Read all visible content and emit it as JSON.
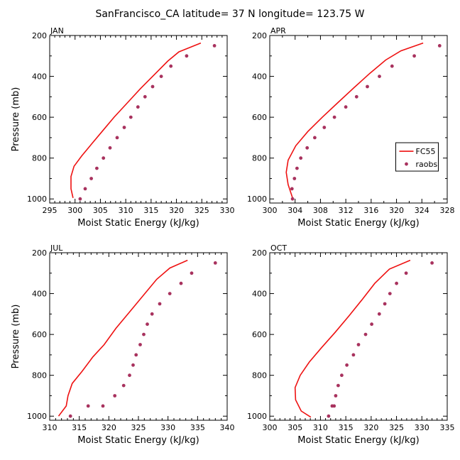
{
  "figure": {
    "title": "SanFrancisco_CA  latitude= 37 N longitude= 123.75 W"
  },
  "colors": {
    "model_line": "#ee1111",
    "obs_marker": "#a8325e",
    "axis": "#000000"
  },
  "chart_data": [
    {
      "type": "line",
      "panel_label": "JAN",
      "xlabel": "Moist Static Energy (kJ/kg)",
      "ylabel": "Pressure (mb)",
      "xlim": [
        295,
        330
      ],
      "ylim": [
        1020,
        200
      ],
      "xticks": [
        295,
        300,
        305,
        310,
        315,
        320,
        325,
        330
      ],
      "yticks": [
        200,
        400,
        600,
        800,
        1000
      ],
      "grid": false,
      "series": [
        {
          "style": "line",
          "x": [
            324.8,
            320.5,
            318.3,
            315.7,
            312.9,
            310.3,
            307.7,
            305.5,
            303.3,
            301.3,
            299.8,
            299.2,
            299.2,
            299.6
          ],
          "y": [
            237,
            280,
            325,
            390,
            460,
            530,
            600,
            665,
            730,
            790,
            840,
            890,
            950,
            995
          ]
        },
        {
          "style": "markers",
          "x": [
            327.5,
            322.0,
            318.9,
            317.0,
            315.3,
            313.8,
            312.4,
            311.0,
            309.7,
            308.3,
            306.9,
            305.6,
            304.3,
            303.2,
            302.0,
            301.0
          ],
          "y": [
            250,
            300,
            350,
            400,
            450,
            500,
            550,
            600,
            650,
            700,
            750,
            800,
            850,
            900,
            950,
            1000
          ]
        }
      ]
    },
    {
      "type": "line",
      "panel_label": "APR",
      "xlabel": "Moist Static Energy (kJ/kg)",
      "ylabel": "",
      "xlim": [
        300,
        328
      ],
      "ylim": [
        1020,
        200
      ],
      "xticks": [
        300,
        304,
        308,
        312,
        316,
        320,
        324,
        328
      ],
      "yticks": [
        200,
        400,
        600,
        800,
        1000
      ],
      "grid": false,
      "series": [
        {
          "name": "FC55",
          "style": "line",
          "x": [
            324.2,
            320.7,
            318.3,
            315.8,
            313.3,
            310.7,
            308.3,
            306.0,
            304.1,
            302.9,
            302.6,
            302.9,
            303.6
          ],
          "y": [
            237,
            275,
            320,
            385,
            455,
            530,
            600,
            670,
            740,
            810,
            870,
            930,
            995
          ]
        },
        {
          "name": "raobs",
          "style": "markers",
          "x": [
            326.8,
            322.8,
            319.3,
            317.3,
            315.4,
            313.7,
            312.0,
            310.2,
            308.6,
            307.1,
            305.9,
            304.9,
            304.3,
            303.9,
            303.5,
            303.6
          ],
          "y": [
            250,
            300,
            350,
            400,
            450,
            500,
            550,
            600,
            650,
            700,
            750,
            800,
            850,
            900,
            950,
            1000
          ]
        }
      ]
    },
    {
      "type": "line",
      "panel_label": "JUL",
      "xlabel": "Moist Static Energy (kJ/kg)",
      "ylabel": "Pressure (mb)",
      "xlim": [
        310,
        340
      ],
      "ylim": [
        1020,
        200
      ],
      "xticks": [
        310,
        315,
        320,
        325,
        330,
        335,
        340
      ],
      "yticks": [
        200,
        400,
        600,
        800,
        1000
      ],
      "grid": false,
      "series": [
        {
          "style": "line",
          "x": [
            333.3,
            330.3,
            328.1,
            325.8,
            323.5,
            321.2,
            319.2,
            317.3,
            315.5,
            313.8,
            313.1,
            312.8,
            311.5
          ],
          "y": [
            237,
            275,
            330,
            410,
            490,
            570,
            650,
            710,
            780,
            840,
            900,
            950,
            1000
          ]
        },
        {
          "style": "markers",
          "x": [
            338.0,
            334.0,
            332.2,
            330.3,
            328.6,
            327.3,
            326.5,
            325.9,
            325.3,
            324.6,
            324.1,
            323.5,
            322.5,
            321.0,
            319.0,
            316.5,
            313.5
          ],
          "y": [
            250,
            300,
            350,
            400,
            450,
            500,
            550,
            600,
            650,
            700,
            750,
            800,
            850,
            900,
            950,
            950,
            1000
          ]
        }
      ]
    },
    {
      "type": "line",
      "panel_label": "OCT",
      "xlabel": "Moist Static Energy (kJ/kg)",
      "ylabel": "",
      "xlim": [
        300,
        335
      ],
      "ylim": [
        1020,
        200
      ],
      "xticks": [
        300,
        305,
        310,
        315,
        320,
        325,
        330,
        335
      ],
      "yticks": [
        200,
        400,
        600,
        800,
        1000
      ],
      "grid": false,
      "series": [
        {
          "style": "line",
          "x": [
            327.7,
            323.6,
            320.7,
            318.2,
            315.6,
            312.9,
            310.2,
            307.8,
            306.0,
            305.0,
            305.1,
            306.2,
            308.1
          ],
          "y": [
            237,
            280,
            350,
            430,
            510,
            590,
            665,
            735,
            800,
            860,
            920,
            975,
            1005
          ]
        },
        {
          "style": "markers",
          "x": [
            332.0,
            326.9,
            325.0,
            323.7,
            322.7,
            321.6,
            320.1,
            318.9,
            317.5,
            316.5,
            315.2,
            314.2,
            313.5,
            313.0,
            312.7,
            312.3,
            311.6
          ],
          "y": [
            250,
            300,
            350,
            400,
            450,
            500,
            550,
            600,
            650,
            700,
            750,
            800,
            850,
            900,
            950,
            950,
            1000
          ]
        }
      ]
    }
  ]
}
